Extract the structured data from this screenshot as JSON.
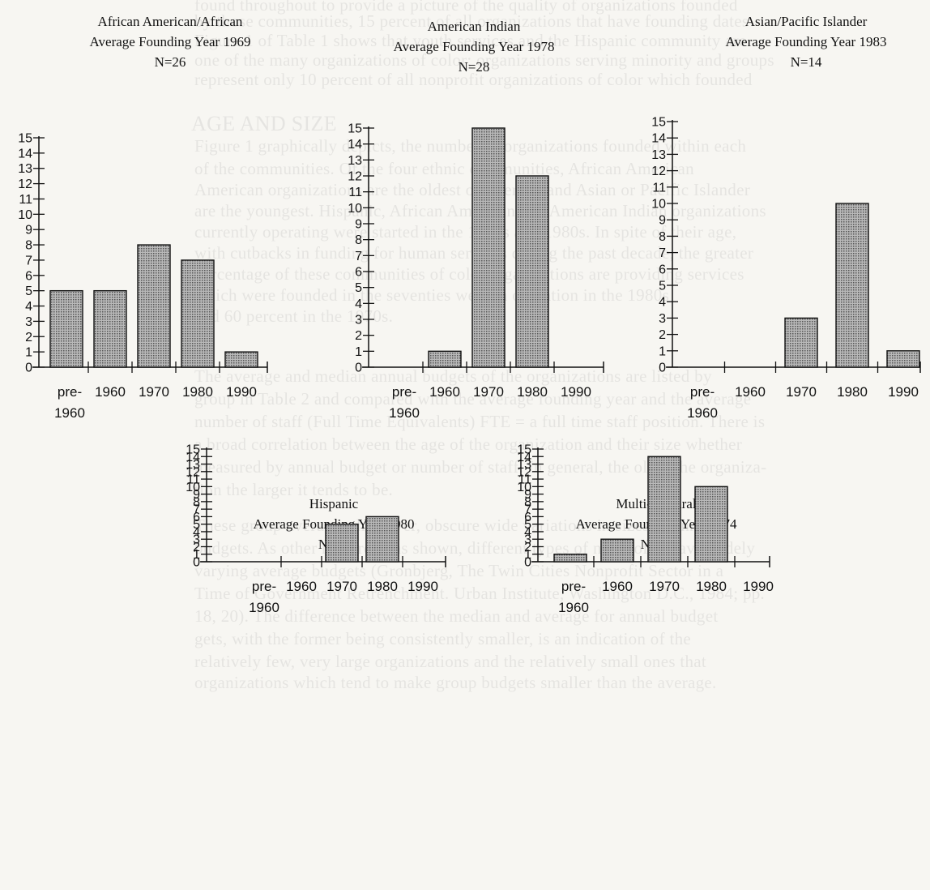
{
  "background_text": [
    "found throughout to provide a picture of the quality of organizations founded",
    "by those communities, 15 percent of all organizations that have founding dates",
    "Figure 1 of Table 1 shows that youth services and the Hispanic community are",
    "one of the many organizations of color; organizations serving minority and groups",
    "represent only 10 percent of all nonprofit organizations of color which founded",
    "AGE AND SIZE",
    "Figure 1 graphically depicts, the number of organizations founded within each",
    "of the communities. Of the four ethnic communities, African American",
    "American organizations are the oldest on average and Asian or Pacific Islander",
    "are the youngest. Hispanic, African American and American Indian organizations",
    "currently operating were started in the 1970s and 1980s. In spite of their age,",
    "with cutbacks in funding for human services during the past decade, the greater",
    "percentage of these communities of color organizations are providing services",
    "which were founded in the seventies were in operation in the 1980s",
    "and 60 percent in the 1970s.",
    "The average and median annual budgets of the organizations are listed by",
    "group in Table 2 and compared with the average founding year and the average",
    "number of staff (Full Time Equivalents) FTE = a full time staff position. There is",
    "a broad correlation between the age of the organization and their size whether",
    "measured by annual budget or number of staff. In general, the older the organiza-",
    "tion the larger it tends to be.",
    "These group averages, however, obscure wide variations in sizes of annual",
    "budgets. As other research has shown, different types of nonprofits have widely",
    "varying average budgets (Gronbjerg, The Twin Cities Nonprofit Sector in a",
    "Time of Government Retrenchment. Urban Institute, Washington D.C., 1984; pp.",
    "18, 20). The difference between the median and average for annual budget",
    "gets, with the former being consistently smaller, is an indication of the",
    "relatively few, very large organizations and the relatively small ones that",
    "organizations which tend to make group budgets smaller than the average."
  ],
  "chart_data": [
    {
      "type": "bar",
      "title_lines": [
        "African American/African",
        "Average Founding Year 1969",
        "N=26"
      ],
      "categories": [
        [
          "pre-",
          "1960"
        ],
        [
          "1960"
        ],
        [
          "1970"
        ],
        [
          "1980"
        ],
        [
          "1990"
        ]
      ],
      "values": [
        5,
        5,
        8,
        7,
        1
      ],
      "y_ticks": [
        "0",
        "1",
        "2",
        "3",
        "4",
        "5",
        "6",
        "7",
        "8",
        "9",
        "10",
        "11",
        "12",
        "13",
        "14",
        "15"
      ],
      "ylim": [
        0,
        15
      ]
    },
    {
      "type": "bar",
      "title_lines": [
        "American Indian",
        "Average Founding Year 1978",
        "N=28"
      ],
      "categories": [
        [
          "pre-",
          "1960"
        ],
        [
          "1960"
        ],
        [
          "1970"
        ],
        [
          "1980"
        ],
        [
          "1990"
        ]
      ],
      "values": [
        0,
        1,
        15,
        12,
        0
      ],
      "y_ticks": [
        "0",
        "1",
        "2",
        "3",
        "4",
        "5",
        "6",
        "7",
        "8",
        "9",
        "10",
        "11",
        "12",
        "13",
        "14",
        "15"
      ],
      "ylim": [
        0,
        15
      ]
    },
    {
      "type": "bar",
      "title_lines": [
        "Asian/Pacific Islander",
        "Average Founding Year 1983",
        "N=14"
      ],
      "categories": [
        [
          "pre-",
          "1960"
        ],
        [
          "1960"
        ],
        [
          "1970"
        ],
        [
          "1980"
        ],
        [
          "1990"
        ]
      ],
      "values": [
        0,
        0,
        3,
        10,
        1
      ],
      "y_ticks": [
        "0",
        "1",
        "2",
        "3",
        "4",
        "5",
        "6",
        "7",
        "8",
        "9",
        "10",
        "11",
        "12",
        "13",
        "14",
        "15"
      ],
      "ylim": [
        0,
        15
      ]
    },
    {
      "type": "bar",
      "title_lines": [
        "Hispanic",
        "Average Founding Year 1980",
        "N=11"
      ],
      "categories": [
        [
          "pre-",
          "1960"
        ],
        [
          "1960"
        ],
        [
          "1970"
        ],
        [
          "1980"
        ],
        [
          "1990"
        ]
      ],
      "values": [
        0,
        0,
        5,
        6,
        0
      ],
      "y_ticks": [
        "0",
        "1",
        "2",
        "3",
        "4",
        "5",
        "6",
        "7",
        "8",
        "9",
        "10",
        "11",
        "12",
        "13",
        "14",
        "15"
      ],
      "ylim": [
        0,
        15
      ]
    },
    {
      "type": "bar",
      "title_lines": [
        "Multi-Cultural",
        "Average Founding Year 1974",
        "N=28"
      ],
      "categories": [
        [
          "pre-",
          "1960"
        ],
        [
          "1960"
        ],
        [
          "1970"
        ],
        [
          "1980"
        ],
        [
          "1990"
        ]
      ],
      "values": [
        1,
        3,
        14,
        10,
        0
      ],
      "y_ticks": [
        "0",
        "1",
        "2",
        "3",
        "4",
        "5",
        "6",
        "7",
        "8",
        "9",
        "10",
        "11",
        "12",
        "13",
        "14",
        "15"
      ],
      "ylim": [
        0,
        15
      ]
    }
  ],
  "colors": {
    "bar_fill": "#8a8a8a",
    "bar_stroke": "#111111",
    "axis": "#111111"
  }
}
